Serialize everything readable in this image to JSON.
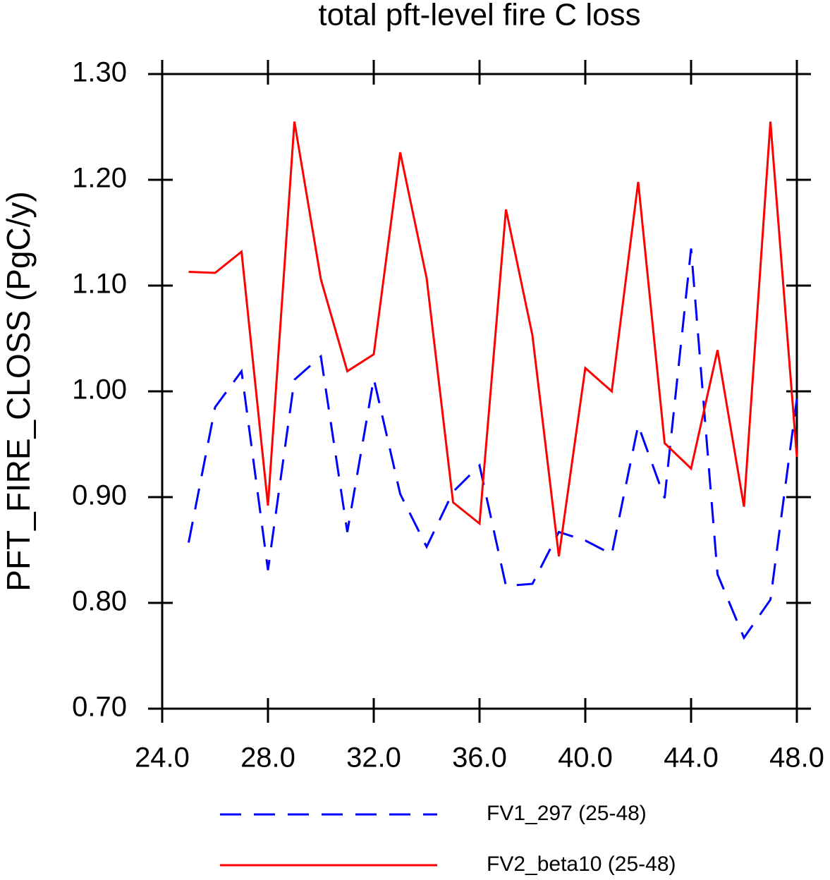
{
  "chart_data": {
    "type": "line",
    "title": "total pft-level fire C loss",
    "y_label": "PFT_FIRE_CLOSS  (PgC/y)",
    "x": [
      25,
      26,
      27,
      28,
      29,
      30,
      31,
      32,
      33,
      34,
      35,
      36,
      37,
      38,
      39,
      40,
      41,
      42,
      43,
      44,
      45,
      46,
      47,
      48
    ],
    "series": [
      {
        "name": "FV1_297 (25-48)",
        "color": "#0000ff",
        "dashed": true,
        "values": [
          0.857,
          0.985,
          1.019,
          0.831,
          1.011,
          1.033,
          0.867,
          1.012,
          0.903,
          0.853,
          0.905,
          0.93,
          0.816,
          0.818,
          0.867,
          0.859,
          0.846,
          0.968,
          0.899,
          1.135,
          0.827,
          0.767,
          0.803,
          0.993
        ]
      },
      {
        "name": "FV2_beta10 (25-48)",
        "color": "#ff0000",
        "dashed": false,
        "values": [
          1.113,
          1.112,
          1.132,
          0.892,
          1.255,
          1.106,
          1.019,
          1.035,
          1.226,
          1.107,
          0.895,
          0.875,
          1.172,
          1.053,
          0.844,
          1.022,
          1.0,
          1.198,
          0.951,
          0.927,
          1.039,
          0.891,
          1.255,
          0.938
        ]
      }
    ],
    "xlim": [
      24,
      48
    ],
    "xticks": [
      {
        "value": 24,
        "label": "24.0"
      },
      {
        "value": 28,
        "label": "28.0"
      },
      {
        "value": 32,
        "label": "32.0"
      },
      {
        "value": 36,
        "label": "36.0"
      },
      {
        "value": 40,
        "label": "40.0"
      },
      {
        "value": 44,
        "label": "44.0"
      },
      {
        "value": 48,
        "label": "48.0"
      }
    ],
    "ylim": [
      0.7,
      1.3
    ],
    "yticks": [
      {
        "value": 0.7,
        "label": "0.70"
      },
      {
        "value": 0.8,
        "label": "0.80"
      },
      {
        "value": 0.9,
        "label": "0.90"
      },
      {
        "value": 1.0,
        "label": "1.00"
      },
      {
        "value": 1.1,
        "label": "1.10"
      },
      {
        "value": 1.2,
        "label": "1.20"
      },
      {
        "value": 1.3,
        "label": "1.30"
      }
    ],
    "legend": "bottom"
  }
}
